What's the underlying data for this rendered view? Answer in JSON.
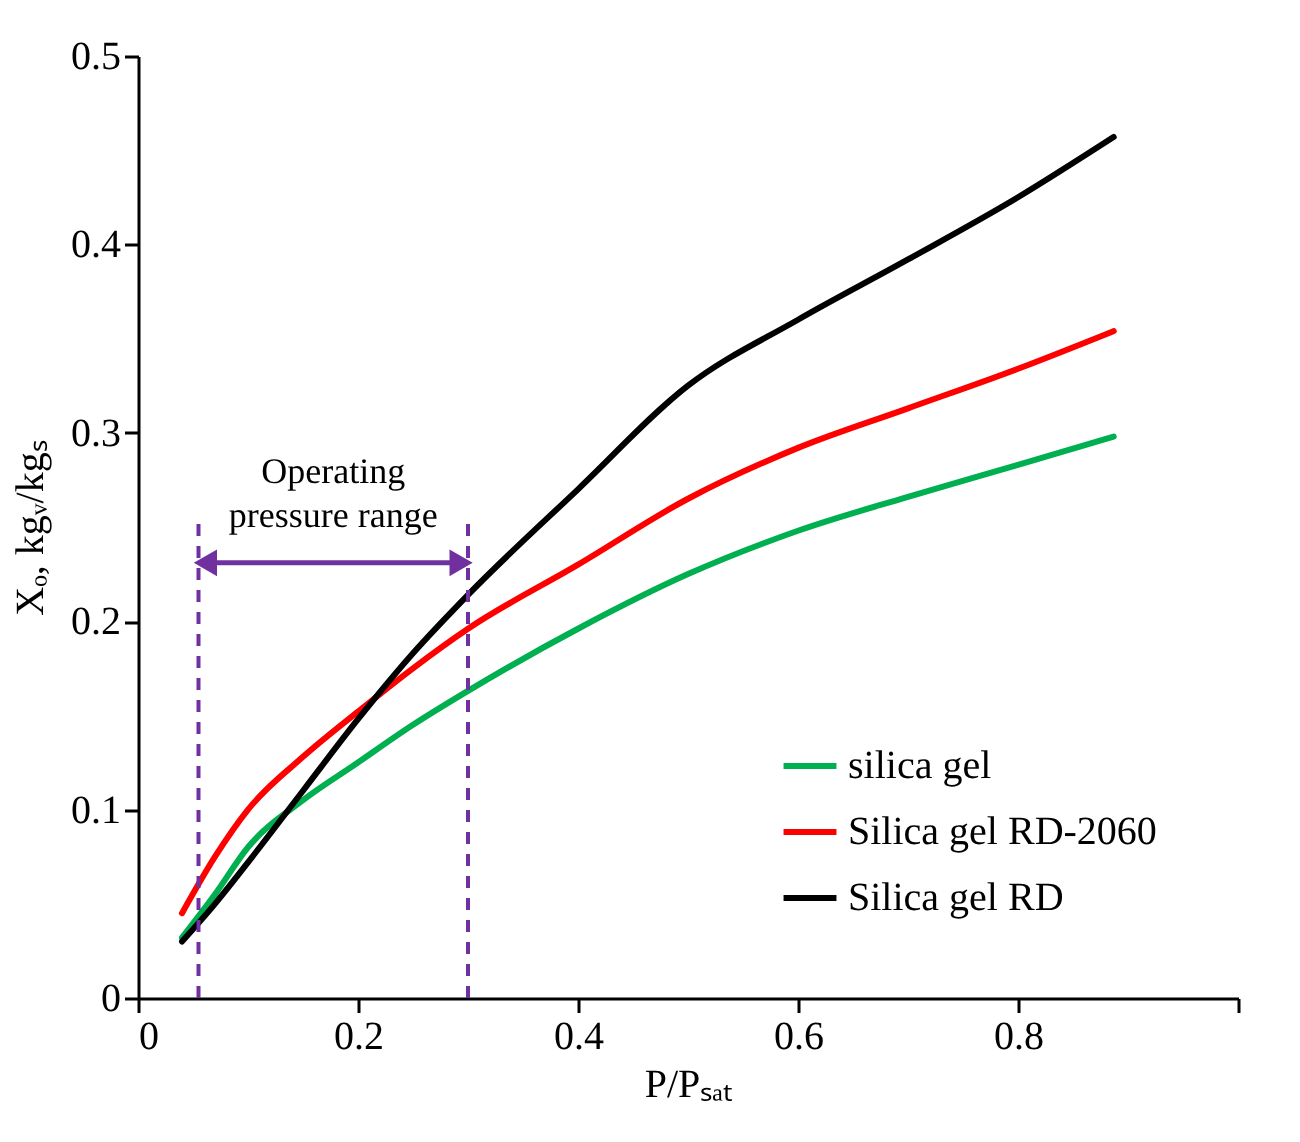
{
  "chart_data": {
    "type": "line",
    "xlabel": "P/Pₛₐₜ",
    "ylabel": "Xₒ, kgᵥ/kgₛ",
    "xlim": [
      0,
      1
    ],
    "xticks": [
      0,
      0.2,
      0.4,
      0.6,
      0.8,
      {
        "value": 1,
        "label": null
      }
    ],
    "ylim": [
      0,
      0.5
    ],
    "yticks": [
      0,
      0.1,
      0.2,
      0.3,
      0.4,
      0.5
    ],
    "grid": false,
    "legend": "bottom right",
    "line_style": "solid",
    "marker": "none",
    "x": [
      0.04,
      0.07,
      0.1,
      0.15,
      0.2,
      0.25,
      0.3,
      0.4,
      0.5,
      0.6,
      0.7,
      0.8,
      0.887
    ],
    "series": [
      {
        "name": "silica gel",
        "color": "#00b050",
        "values": [
          0.032,
          0.055,
          0.08,
          0.105,
          0.125,
          0.145,
          0.163,
          0.196,
          0.225,
          0.248,
          0.266,
          0.283,
          0.298
        ]
      },
      {
        "name": "Silica gel RD-2060",
        "color": "#ff0000",
        "values": [
          0.045,
          0.075,
          0.1,
          0.128,
          0.152,
          0.175,
          0.196,
          0.23,
          0.265,
          0.292,
          0.313,
          0.334,
          0.354
        ]
      },
      {
        "name": "Silica gel RD",
        "color": "#000000",
        "values": [
          0.03,
          0.05,
          0.072,
          0.11,
          0.148,
          0.183,
          0.214,
          0.27,
          0.325,
          0.36,
          0.392,
          0.425,
          0.457
        ]
      }
    ],
    "ref_lines": [
      {
        "axis": "x",
        "value": 0.055,
        "color": "#7030a0",
        "line_style": "dashed"
      },
      {
        "axis": "x",
        "value": 0.3,
        "color": "#7030a0",
        "line_style": "dashed"
      }
    ],
    "annotations": [
      "Operating pressure range"
    ]
  }
}
